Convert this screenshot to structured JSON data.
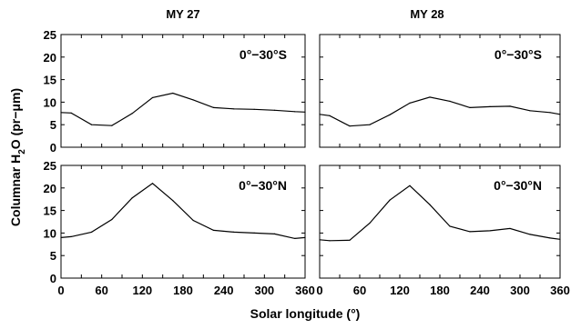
{
  "figure": {
    "ylabel_main": "Columnar H",
    "ylabel_sub": "2",
    "ylabel_tail": "O (pr−μm)",
    "xlabel": "Solar longitude (°)",
    "columns": [
      "MY 27",
      "MY 28"
    ]
  },
  "chart_data": [
    {
      "type": "line",
      "column_title": "MY 27",
      "annotation": "0°−30°S",
      "xlim": [
        0,
        360
      ],
      "ylim": [
        0,
        25
      ],
      "xticks": [],
      "yticks": [
        "0",
        "5",
        "10",
        "15",
        "20",
        "25"
      ],
      "series": [
        {
          "x": [
            0,
            15,
            45,
            75,
            105,
            135,
            165,
            195,
            225,
            255,
            285,
            315,
            345,
            360
          ],
          "y": [
            7.7,
            7.6,
            5.0,
            4.8,
            7.5,
            11.0,
            12.0,
            10.5,
            8.8,
            8.5,
            8.4,
            8.2,
            7.9,
            7.8
          ]
        }
      ]
    },
    {
      "type": "line",
      "column_title": "MY 28",
      "annotation": "0°−30°S",
      "xlim": [
        0,
        360
      ],
      "ylim": [
        0,
        25
      ],
      "xticks": [],
      "yticks": [],
      "series": [
        {
          "x": [
            0,
            15,
            45,
            75,
            105,
            135,
            165,
            195,
            225,
            255,
            285,
            315,
            345,
            360
          ],
          "y": [
            7.3,
            7.0,
            4.7,
            5.0,
            7.2,
            9.8,
            11.1,
            10.2,
            8.8,
            9.0,
            9.1,
            8.1,
            7.7,
            7.3
          ]
        }
      ]
    },
    {
      "type": "line",
      "annotation": "0°−30°N",
      "xlim": [
        0,
        360
      ],
      "ylim": [
        0,
        25
      ],
      "xticks": [
        "0",
        "60",
        "120",
        "180",
        "240",
        "300",
        "360"
      ],
      "yticks": [
        "0",
        "5",
        "10",
        "15",
        "20",
        "25"
      ],
      "series": [
        {
          "x": [
            0,
            15,
            45,
            75,
            105,
            135,
            165,
            195,
            225,
            255,
            285,
            315,
            345,
            360
          ],
          "y": [
            9.0,
            9.2,
            10.2,
            13.0,
            17.8,
            21.0,
            17.2,
            12.8,
            10.6,
            10.2,
            10.0,
            9.8,
            8.8,
            9.0
          ]
        }
      ]
    },
    {
      "type": "line",
      "annotation": "0°−30°N",
      "xlim": [
        0,
        360
      ],
      "ylim": [
        0,
        25
      ],
      "xticks": [
        "0",
        "60",
        "120",
        "180",
        "240",
        "300",
        "360"
      ],
      "yticks": [],
      "series": [
        {
          "x": [
            0,
            15,
            45,
            75,
            105,
            135,
            165,
            195,
            225,
            255,
            285,
            315,
            345,
            360
          ],
          "y": [
            8.5,
            8.3,
            8.4,
            12.2,
            17.3,
            20.5,
            16.3,
            11.5,
            10.3,
            10.5,
            11.0,
            9.7,
            8.9,
            8.6
          ]
        }
      ]
    }
  ]
}
